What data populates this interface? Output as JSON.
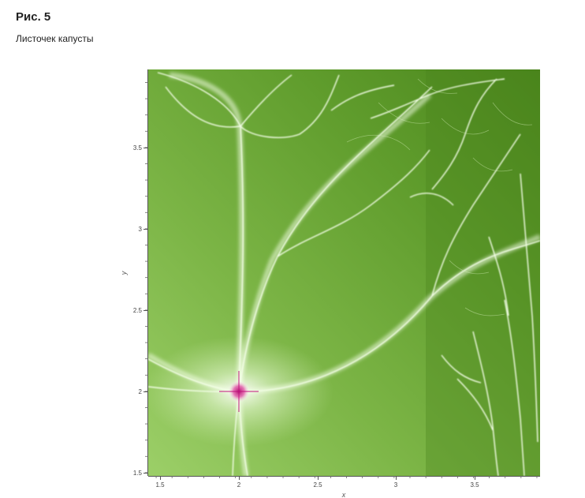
{
  "figure": {
    "number_label": "Рис. 5",
    "caption": "Листочек капусты"
  },
  "colors": {
    "background_light": "#8fc75a",
    "background_dark": "#4e8c1f",
    "filament": "#f2ffe6",
    "center": "#d0188a",
    "axis": "#555555"
  },
  "chart_data": {
    "type": "heatmap",
    "title": "",
    "xlabel": "x",
    "ylabel": "y",
    "xlim": [
      1.45,
      3.92
    ],
    "ylim": [
      1.48,
      3.98
    ],
    "xticks": [
      1.5,
      2,
      2.5,
      3,
      3.5
    ],
    "xtick_labels": [
      "1.5",
      "2",
      "2.5",
      "3",
      "3.5"
    ],
    "yticks": [
      1.5,
      2,
      2.5,
      3,
      3.5
    ],
    "ytick_labels": [
      "1.5",
      "2",
      "2.5",
      "3",
      "3.5"
    ],
    "grid": false,
    "colormap": [
      "#4e8c1f",
      "#8fc75a",
      "#f2ffe6",
      "#d0188a"
    ],
    "singular_point": {
      "x": 2.0,
      "y": 2.0
    }
  }
}
